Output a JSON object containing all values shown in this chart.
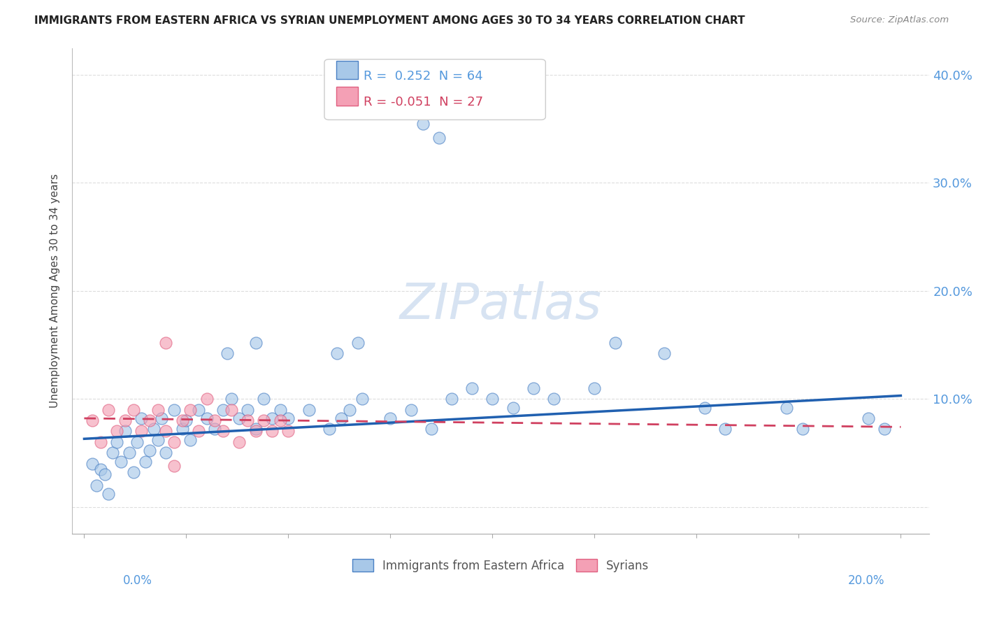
{
  "title": "IMMIGRANTS FROM EASTERN AFRICA VS SYRIAN UNEMPLOYMENT AMONG AGES 30 TO 34 YEARS CORRELATION CHART",
  "source": "Source: ZipAtlas.com",
  "ylabel": "Unemployment Among Ages 30 to 34 years",
  "xlim": [
    -0.003,
    0.207
  ],
  "ylim": [
    -0.025,
    0.425
  ],
  "ytick_vals": [
    0.0,
    0.1,
    0.2,
    0.3,
    0.4
  ],
  "ytick_labels": [
    "",
    "10.0%",
    "20.0%",
    "30.0%",
    "40.0%"
  ],
  "blue_R": "0.252",
  "blue_N": "64",
  "pink_R": "-0.051",
  "pink_N": "27",
  "blue_fill": "#A8C8E8",
  "pink_fill": "#F4A0B5",
  "blue_edge": "#4A80C4",
  "pink_edge": "#E06080",
  "blue_line": "#2060B0",
  "pink_line": "#D04060",
  "tick_color": "#5599DD",
  "title_color": "#222222",
  "source_color": "#888888",
  "ylabel_color": "#444444",
  "grid_color": "#DDDDDD",
  "watermark_color": "#D0DFF0",
  "blue_x": [
    0.002,
    0.003,
    0.004,
    0.005,
    0.006,
    0.007,
    0.008,
    0.009,
    0.01,
    0.011,
    0.012,
    0.013,
    0.014,
    0.015,
    0.016,
    0.017,
    0.018,
    0.019,
    0.02,
    0.022,
    0.024,
    0.025,
    0.026,
    0.028,
    0.03,
    0.032,
    0.034,
    0.036,
    0.038,
    0.04,
    0.042,
    0.044,
    0.046,
    0.048,
    0.05,
    0.055,
    0.06,
    0.063,
    0.065,
    0.068,
    0.075,
    0.08,
    0.085,
    0.09,
    0.095,
    0.1,
    0.105,
    0.11,
    0.115,
    0.125,
    0.035,
    0.042,
    0.062,
    0.067,
    0.13,
    0.142,
    0.152,
    0.157,
    0.172,
    0.176,
    0.192,
    0.196,
    0.083,
    0.087
  ],
  "blue_y": [
    0.04,
    0.02,
    0.035,
    0.03,
    0.012,
    0.05,
    0.06,
    0.042,
    0.07,
    0.05,
    0.032,
    0.06,
    0.082,
    0.042,
    0.052,
    0.072,
    0.062,
    0.082,
    0.05,
    0.09,
    0.072,
    0.08,
    0.062,
    0.09,
    0.082,
    0.072,
    0.09,
    0.1,
    0.082,
    0.09,
    0.072,
    0.1,
    0.082,
    0.09,
    0.082,
    0.09,
    0.072,
    0.082,
    0.09,
    0.1,
    0.082,
    0.09,
    0.072,
    0.1,
    0.11,
    0.1,
    0.092,
    0.11,
    0.1,
    0.11,
    0.142,
    0.152,
    0.142,
    0.152,
    0.152,
    0.142,
    0.092,
    0.072,
    0.092,
    0.072,
    0.082,
    0.072,
    0.355,
    0.342
  ],
  "pink_x": [
    0.002,
    0.004,
    0.006,
    0.008,
    0.01,
    0.012,
    0.014,
    0.016,
    0.018,
    0.02,
    0.022,
    0.024,
    0.026,
    0.028,
    0.03,
    0.032,
    0.034,
    0.036,
    0.038,
    0.04,
    0.042,
    0.044,
    0.046,
    0.048,
    0.05,
    0.02,
    0.022
  ],
  "pink_y": [
    0.08,
    0.06,
    0.09,
    0.07,
    0.08,
    0.09,
    0.07,
    0.08,
    0.09,
    0.07,
    0.06,
    0.08,
    0.09,
    0.07,
    0.1,
    0.08,
    0.07,
    0.09,
    0.06,
    0.08,
    0.07,
    0.08,
    0.07,
    0.08,
    0.07,
    0.152,
    0.038
  ],
  "blue_line_x": [
    0.0,
    0.2
  ],
  "blue_line_y": [
    0.063,
    0.103
  ],
  "pink_line_x": [
    0.0,
    0.2
  ],
  "pink_line_y": [
    0.082,
    0.074
  ]
}
